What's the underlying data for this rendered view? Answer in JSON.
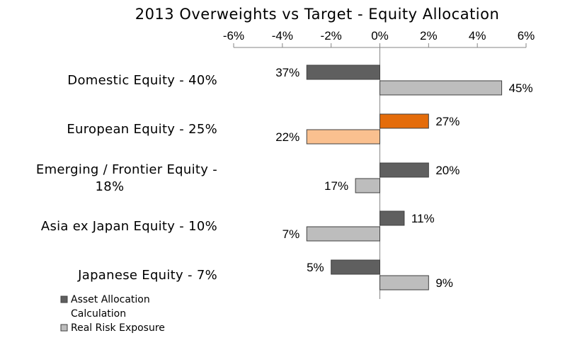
{
  "chart_data": {
    "type": "bar",
    "orientation": "horizontal",
    "title": "2013 Overweights vs Target - Equity Allocation",
    "xlim": [
      -6,
      6
    ],
    "x_ticks": [
      "-6%",
      "-4%",
      "-2%",
      "0%",
      "2%",
      "4%",
      "6%"
    ],
    "x_tick_position": "top",
    "grid": false,
    "legend_position": "bottom-left",
    "categories": [
      [
        "Domestic Equity - 40%"
      ],
      [
        "European Equity - 25%"
      ],
      [
        "Emerging / Frontier Equity -",
        "18%"
      ],
      [
        "Asia ex Japan Equity - 10%"
      ],
      [
        "Japanese Equity - 7%"
      ]
    ],
    "series": [
      {
        "name": "Asset Allocation Calculation",
        "legend_lines": [
          "Asset Allocation",
          "Calculation"
        ],
        "color": "#5f5f5f",
        "values": [
          -3,
          2,
          2,
          1,
          -2
        ],
        "labels": [
          "37%",
          "27%",
          "20%",
          "11%",
          "5%"
        ]
      },
      {
        "name": "Real Risk Exposure",
        "legend_lines": [
          "Real Risk Exposure"
        ],
        "color": "#bdbdbd",
        "values": [
          5,
          -3,
          -1,
          -3,
          2
        ],
        "labels": [
          "45%",
          "22%",
          "17%",
          "7%",
          "9%"
        ]
      }
    ],
    "highlight": {
      "category_index": 1,
      "colors": [
        "#e46c0a",
        "#fac08f"
      ]
    }
  }
}
